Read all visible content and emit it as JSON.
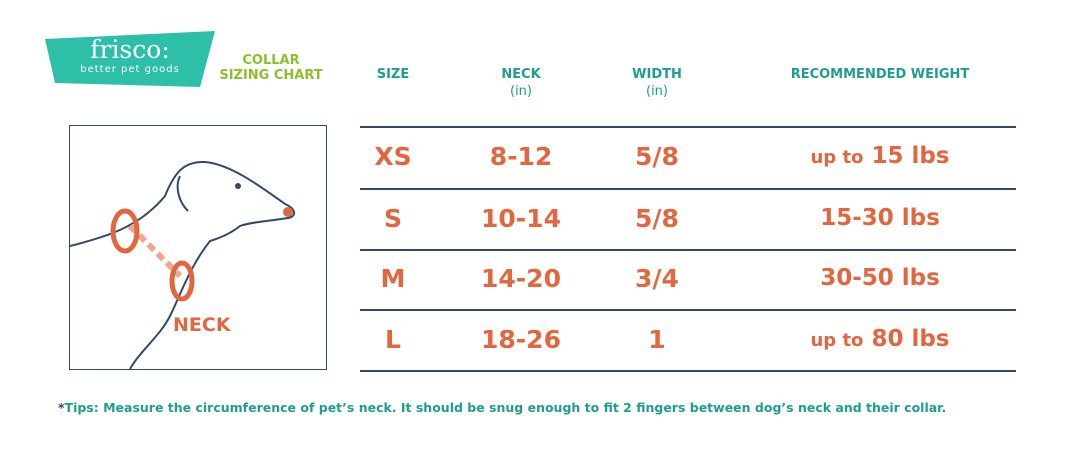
{
  "logo": {
    "name": "frisco:",
    "tagline": "better pet goods"
  },
  "title": {
    "line1": "COLLAR",
    "line2": "SIZING CHART"
  },
  "headers": [
    {
      "label": "SIZE",
      "unit": ""
    },
    {
      "label": "NECK",
      "unit": "(in)"
    },
    {
      "label": "WIDTH",
      "unit": "(in)"
    },
    {
      "label": "RECOMMENDED WEIGHT",
      "unit": ""
    }
  ],
  "rows": [
    {
      "size": "XS",
      "neck": "8-12",
      "width": "5/8",
      "weight_prefix": "up to",
      "weight": "15 lbs"
    },
    {
      "size": "S",
      "neck": "10-14",
      "width": "5/8",
      "weight_prefix": "",
      "weight": "15-30 lbs"
    },
    {
      "size": "M",
      "neck": "14-20",
      "width": "3/4",
      "weight_prefix": "",
      "weight": "30-50 lbs"
    },
    {
      "size": "L",
      "neck": "18-26",
      "width": "1",
      "weight_prefix": "up to",
      "weight": "80 lbs"
    }
  ],
  "illustration": {
    "label": "NECK"
  },
  "tips": {
    "star": "*",
    "text": "Tips:  Measure the circumference of pet’s neck. It should be snug enough to fit 2 fingers between dog’s neck and their collar."
  },
  "colors": {
    "teal": "#2ebfa8",
    "green": "#8cbf2a",
    "orange": "#e0673f",
    "navy": "#33496a"
  }
}
